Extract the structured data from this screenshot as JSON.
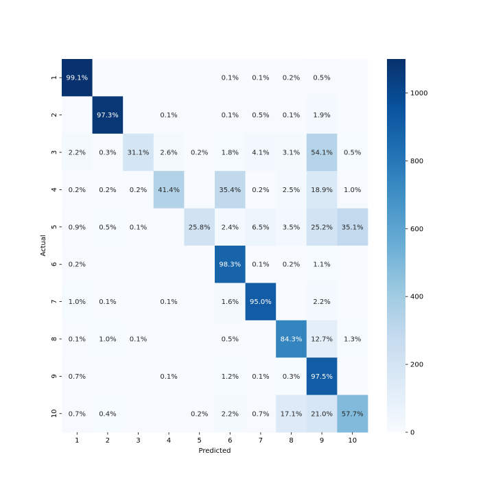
{
  "chart_data": {
    "type": "heatmap",
    "title": "",
    "xlabel": "Predicted",
    "ylabel": "Actual",
    "x_categories": [
      "1",
      "2",
      "3",
      "4",
      "5",
      "6",
      "7",
      "8",
      "9",
      "10"
    ],
    "y_categories": [
      "1",
      "2",
      "3",
      "4",
      "5",
      "6",
      "7",
      "8",
      "9",
      "10"
    ],
    "cells": [
      [
        "99.1%",
        "",
        "",
        "",
        "",
        "0.1%",
        "0.1%",
        "0.2%",
        "0.5%",
        ""
      ],
      [
        "",
        "97.3%",
        "",
        "0.1%",
        "",
        "0.1%",
        "0.5%",
        "0.1%",
        "1.9%",
        ""
      ],
      [
        "2.2%",
        "0.3%",
        "31.1%",
        "2.6%",
        "0.2%",
        "1.8%",
        "4.1%",
        "3.1%",
        "54.1%",
        "0.5%"
      ],
      [
        "0.2%",
        "0.2%",
        "0.2%",
        "41.4%",
        "",
        "35.4%",
        "0.2%",
        "2.5%",
        "18.9%",
        "1.0%"
      ],
      [
        "0.9%",
        "0.5%",
        "0.1%",
        "",
        "25.8%",
        "2.4%",
        "6.5%",
        "3.5%",
        "25.2%",
        "35.1%"
      ],
      [
        "0.2%",
        "",
        "",
        "",
        "",
        "98.3%",
        "0.1%",
        "0.2%",
        "1.1%",
        ""
      ],
      [
        "1.0%",
        "0.1%",
        "",
        "0.1%",
        "",
        "1.6%",
        "95.0%",
        "",
        "2.2%",
        ""
      ],
      [
        "0.1%",
        "1.0%",
        "0.1%",
        "",
        "",
        "0.5%",
        "",
        "84.3%",
        "12.7%",
        "1.3%"
      ],
      [
        "0.7%",
        "",
        "",
        "0.1%",
        "",
        "1.2%",
        "0.1%",
        "0.3%",
        "97.5%",
        ""
      ],
      [
        "0.7%",
        "0.4%",
        "",
        "",
        "0.2%",
        "2.2%",
        "0.7%",
        "17.1%",
        "21.0%",
        "57.7%"
      ]
    ],
    "counts": [
      [
        1090,
        0,
        0,
        0,
        0,
        1,
        1,
        2,
        6,
        0
      ],
      [
        0,
        1070,
        0,
        1,
        0,
        1,
        6,
        1,
        21,
        0
      ],
      [
        14,
        2,
        193,
        16,
        1,
        11,
        25,
        19,
        335,
        3
      ],
      [
        2,
        2,
        2,
        345,
        0,
        295,
        2,
        21,
        158,
        8
      ],
      [
        7,
        4,
        1,
        0,
        210,
        20,
        53,
        28,
        205,
        285
      ],
      [
        2,
        0,
        0,
        0,
        0,
        880,
        1,
        2,
        10,
        0
      ],
      [
        9,
        1,
        0,
        1,
        0,
        15,
        915,
        0,
        21,
        0
      ],
      [
        1,
        9,
        1,
        0,
        0,
        5,
        0,
        745,
        112,
        11
      ],
      [
        6,
        0,
        0,
        1,
        0,
        11,
        1,
        3,
        915,
        0
      ],
      [
        6,
        3,
        0,
        0,
        2,
        18,
        6,
        145,
        178,
        490
      ]
    ],
    "colorbar": {
      "vmin": 0,
      "vmax": 1100,
      "ticks": [
        "0",
        "200",
        "400",
        "600",
        "800",
        "1000"
      ],
      "colormap": "Blues",
      "color_low": "#f7fbff",
      "color_high": "#08306b"
    },
    "grid": false,
    "legend": "colorbar-right"
  }
}
